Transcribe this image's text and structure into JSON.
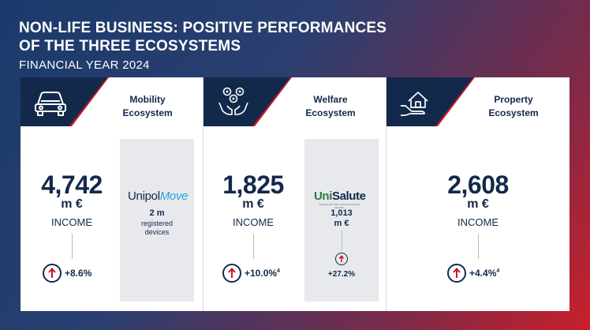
{
  "header": {
    "title_line1": "NON-LIFE BUSINESS: POSITIVE PERFORMANCES",
    "title_line2": "OF THE THREE ECOSYSTEMS",
    "subtitle": "FINANCIAL YEAR 2024"
  },
  "cards": [
    {
      "label_line1": "Mobility",
      "label_line2": "Ecosystem",
      "icon": "car-icon",
      "value": "4,742",
      "unit": "m €",
      "income_label": "INCOME",
      "growth": "+8.6%",
      "side": {
        "logo_main": "Unipol",
        "logo_accent": "Move",
        "value": "2 m",
        "text_line1": "registered",
        "text_line2": "devices"
      }
    },
    {
      "label_line1": "Welfare",
      "label_line2": "Ecosystem",
      "icon": "welfare-hands-icon",
      "value": "1,825",
      "unit": "m €",
      "income_label": "INCOME",
      "growth": "+10.0%",
      "growth_note": "4",
      "side": {
        "logo_main": "Uni",
        "logo_accent": "Salute",
        "logo_sub": "SPECIALISTI NELL'ASSICURAZIONE SALUTE",
        "value": "1,013",
        "unit": "m €",
        "growth": "+27.2%"
      }
    },
    {
      "label_line1": "Property",
      "label_line2": "Ecosystem",
      "icon": "house-in-hand-icon",
      "value": "2,608",
      "unit": "m €",
      "income_label": "INCOME",
      "growth": "+4.4%",
      "growth_note": "4"
    }
  ]
}
